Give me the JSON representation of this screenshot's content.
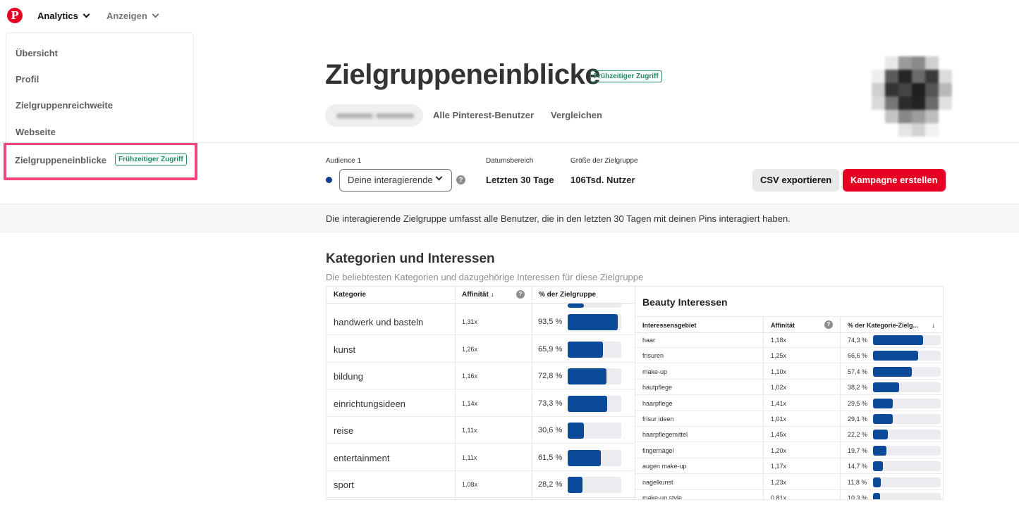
{
  "nav": {
    "logo_letter": "P",
    "analytics_label": "Analytics",
    "ads_label": "Anzeigen"
  },
  "dropdown": {
    "items": [
      "Übersicht",
      "Profil",
      "Zielgruppenreichweite",
      "Webseite"
    ],
    "highlighted_item": "Zielgruppeneinblicke",
    "highlighted_badge": "Frühzeitiger Zugriff"
  },
  "header": {
    "title": "Zielgruppeneinblicke",
    "badge": "Frühzeitiger Zugriff",
    "tabs": [
      "Alle Pinterest-Benutzer",
      "Vergleichen"
    ]
  },
  "controls": {
    "audience_label": "Audience 1",
    "audience_value": "Deine interagierende",
    "date_label": "Datumsbereich",
    "date_value": "Letzten 30 Tage",
    "size_label": "Größe der Zielgruppe",
    "size_value": "106Tsd. Nutzer",
    "export_button": "CSV exportieren",
    "campaign_button": "Kampagne erstellen",
    "help_symbol": "?"
  },
  "info_text": "Die interagierende Zielgruppe umfasst alle Benutzer, die in den letzten 30 Tagen mit deinen Pins interagiert haben.",
  "categories": {
    "title": "Kategorien und Interessen",
    "subtitle": "Die beliebtesten Kategorien und dazugehörige Interessen für diese Zielgruppe",
    "headers": {
      "category": "Kategorie",
      "affinity": "Affinität",
      "share": "% der Zielgruppe"
    },
    "rows": [
      {
        "name": "handwerk und basteln",
        "affinity": "1,31x",
        "share": "93,5 %",
        "fraction": 0.935
      },
      {
        "name": "kunst",
        "affinity": "1,26x",
        "share": "65,9 %",
        "fraction": 0.659
      },
      {
        "name": "bildung",
        "affinity": "1,16x",
        "share": "72,8 %",
        "fraction": 0.728
      },
      {
        "name": "einrichtungsideen",
        "affinity": "1,14x",
        "share": "73,3 %",
        "fraction": 0.733
      },
      {
        "name": "reise",
        "affinity": "1,11x",
        "share": "30,6 %",
        "fraction": 0.306
      },
      {
        "name": "entertainment",
        "affinity": "1,11x",
        "share": "61,5 %",
        "fraction": 0.615
      },
      {
        "name": "sport",
        "affinity": "1,08x",
        "share": "28,2 %",
        "fraction": 0.282
      }
    ]
  },
  "beauty": {
    "title": "Beauty Interessen",
    "headers": {
      "interest": "Interessensgebiet",
      "affinity": "Affinität",
      "share": "% der Kategorie-Zielg..."
    },
    "rows": [
      {
        "name": "haar",
        "affinity": "1,18x",
        "share": "74,3 %",
        "fraction": 0.743
      },
      {
        "name": "frisuren",
        "affinity": "1,25x",
        "share": "66,6 %",
        "fraction": 0.666
      },
      {
        "name": "make-up",
        "affinity": "1,10x",
        "share": "57,4 %",
        "fraction": 0.574
      },
      {
        "name": "hautpflege",
        "affinity": "1,02x",
        "share": "38,2 %",
        "fraction": 0.382
      },
      {
        "name": "haarpflege",
        "affinity": "1,41x",
        "share": "29,5 %",
        "fraction": 0.295
      },
      {
        "name": "frisur ideen",
        "affinity": "1,01x",
        "share": "29,1 %",
        "fraction": 0.291
      },
      {
        "name": "haarpflegemittel",
        "affinity": "1,45x",
        "share": "22,2 %",
        "fraction": 0.222
      },
      {
        "name": "fingernägel",
        "affinity": "1,20x",
        "share": "19,7 %",
        "fraction": 0.197
      },
      {
        "name": "augen make-up",
        "affinity": "1,17x",
        "share": "14,7 %",
        "fraction": 0.147
      },
      {
        "name": "nagelkunst",
        "affinity": "1,23x",
        "share": "11,8 %",
        "fraction": 0.118
      },
      {
        "name": "make-up style",
        "affinity": "0,81x",
        "share": "10,3 %",
        "fraction": 0.103
      }
    ]
  },
  "colors": {
    "brand_red": "#e60023",
    "bar_blue": "#0b4a99",
    "badge_green": "#1e8b65",
    "highlight_pink": "#f0467a"
  }
}
